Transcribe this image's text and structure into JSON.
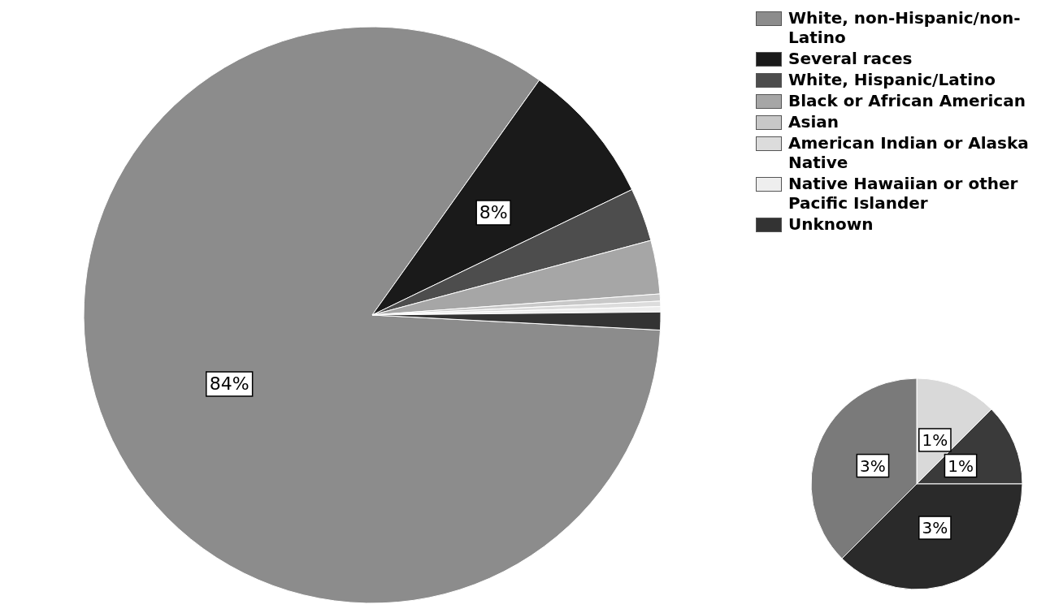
{
  "chart_data": [
    {
      "type": "pie",
      "categories": [
        "White, non-Hispanic/non-Latino",
        "Several races",
        "White, Hispanic/Latino",
        "Black or African American",
        "Asian",
        "American Indian or Alaska Native",
        "Native Hawaiian or other Pacific Islander",
        "Unknown"
      ],
      "values": [
        84,
        8,
        3,
        3,
        0.4,
        0.3,
        0.3,
        1
      ],
      "colors": [
        "#8c8c8c",
        "#1a1a1a",
        "#4d4d4d",
        "#a6a6a6",
        "#c8c8c8",
        "#dcdcdc",
        "#eeeeee",
        "#333333"
      ],
      "value_labels": [
        "84%",
        "8%",
        null,
        null,
        null,
        null,
        null,
        null
      ],
      "legend": "top right"
    },
    {
      "type": "pie",
      "categories": [
        null,
        null,
        null,
        null
      ],
      "values": [
        1,
        1,
        3,
        3
      ],
      "colors": [
        "#d9d9d9",
        "#3a3a3a",
        "#2a2a2a",
        "#7a7a7a"
      ],
      "value_labels": [
        "1%",
        "1%",
        "3%",
        "3%"
      ]
    }
  ]
}
